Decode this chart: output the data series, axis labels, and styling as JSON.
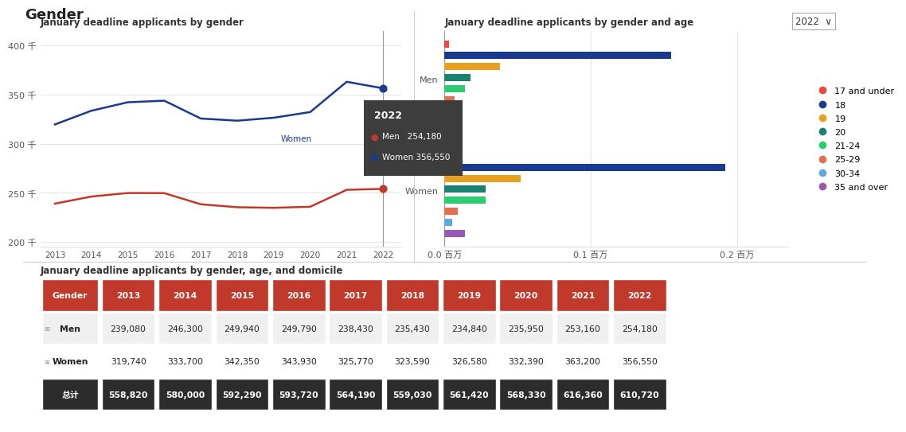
{
  "title": "Gender",
  "line_chart_title": "January deadline applicants by gender",
  "bar_chart_title": "January deadline applicants by gender and age",
  "table_title": "January deadline applicants by gender, age, and domicile",
  "years": [
    2013,
    2014,
    2015,
    2016,
    2017,
    2018,
    2019,
    2020,
    2021,
    2022
  ],
  "men_values": [
    239080,
    246300,
    249940,
    249790,
    238430,
    235430,
    234840,
    235950,
    253160,
    254180
  ],
  "women_values": [
    319740,
    333700,
    342350,
    343930,
    325770,
    323590,
    326580,
    332390,
    363200,
    356550
  ],
  "men_color": "#c0392b",
  "women_color": "#1a3a8f",
  "tooltip_year": "2022",
  "tooltip_men": "254,180",
  "tooltip_women": "356,550",
  "tooltip_bg": "#3d3d3d",
  "dropdown_text": "2022",
  "age_groups": [
    "17 and under",
    "18",
    "19",
    "20",
    "21-24",
    "25-29",
    "30-34",
    "35 and over"
  ],
  "age_colors": [
    "#e74c3c",
    "#1a3a8f",
    "#e8a020",
    "#1a8070",
    "#2ecc71",
    "#e07050",
    "#5aabdb",
    "#9b59b6"
  ],
  "men_age_values": [
    3000,
    155000,
    38000,
    18000,
    14000,
    7000,
    4500,
    7000
  ],
  "women_age_values": [
    3500,
    192000,
    52000,
    28000,
    28000,
    9000,
    5500,
    14000
  ],
  "table_headers": [
    "Gender",
    "2013",
    "2014",
    "2015",
    "2016",
    "2017",
    "2018",
    "2019",
    "2020",
    "2021",
    "2022"
  ],
  "table_men": [
    "Men",
    "239,080",
    "246,300",
    "249,940",
    "249,790",
    "238,430",
    "235,430",
    "234,840",
    "235,950",
    "253,160",
    "254,180"
  ],
  "table_women": [
    "Women",
    "319,740",
    "333,700",
    "342,350",
    "343,930",
    "325,770",
    "323,590",
    "326,580",
    "332,390",
    "363,200",
    "356,550"
  ],
  "table_total": [
    "总计",
    "558,820",
    "580,000",
    "592,290",
    "593,720",
    "564,190",
    "559,030",
    "561,420",
    "568,330",
    "616,360",
    "610,720"
  ],
  "header_bg": "#c0392b",
  "header_text_color": "#ffffff",
  "men_row_bg": "#f0f0f0",
  "women_row_bg": "#ffffff",
  "total_row_bg": "#2c2c2c",
  "total_text_color": "#ffffff",
  "bg_color": "#ffffff",
  "divider_color": "#cccccc"
}
